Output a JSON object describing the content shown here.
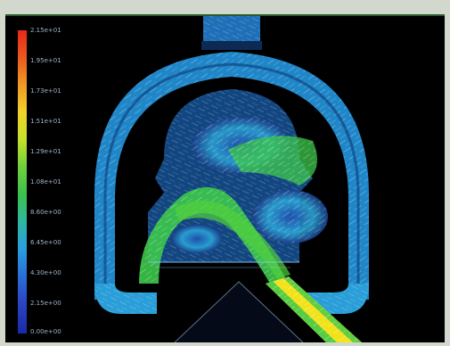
{
  "legend": {
    "labels": [
      "2.15e+01",
      "1.95e+01",
      "1.73e+01",
      "1.51e+01",
      "1.29e+01",
      "1.08e+01",
      "8.60e+00",
      "6.45e+00",
      "4.30e+00",
      "2.15e+00",
      "0.00e+00"
    ]
  },
  "colors": {
    "background": "#000000",
    "low_velocity": "#1a3fa8",
    "mid_velocity": "#2bb8d0",
    "high_velocity": "#3ccf3a",
    "peak_velocity": "#f2e21c"
  }
}
